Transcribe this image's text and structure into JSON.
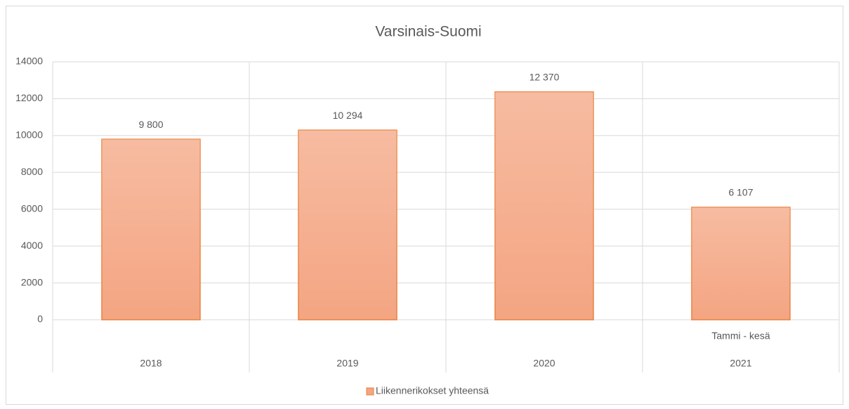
{
  "chart_data": {
    "type": "bar",
    "title": "Varsinais-Suomi",
    "categories": [
      "2018",
      "2019",
      "2020",
      "2021"
    ],
    "category_notes": [
      null,
      null,
      null,
      "Tammi - kesä"
    ],
    "series": [
      {
        "name": "Liikennerikokset yhteensä",
        "color": "#f4a582",
        "values": [
          9800,
          10294,
          12370,
          6107
        ],
        "value_labels": [
          "9 800",
          "10 294",
          "12 370",
          "6 107"
        ]
      }
    ],
    "ylim": [
      0,
      14000
    ],
    "yticks": [
      0,
      2000,
      4000,
      6000,
      8000,
      10000,
      12000,
      14000
    ],
    "grid": true,
    "legend": "bottom"
  }
}
